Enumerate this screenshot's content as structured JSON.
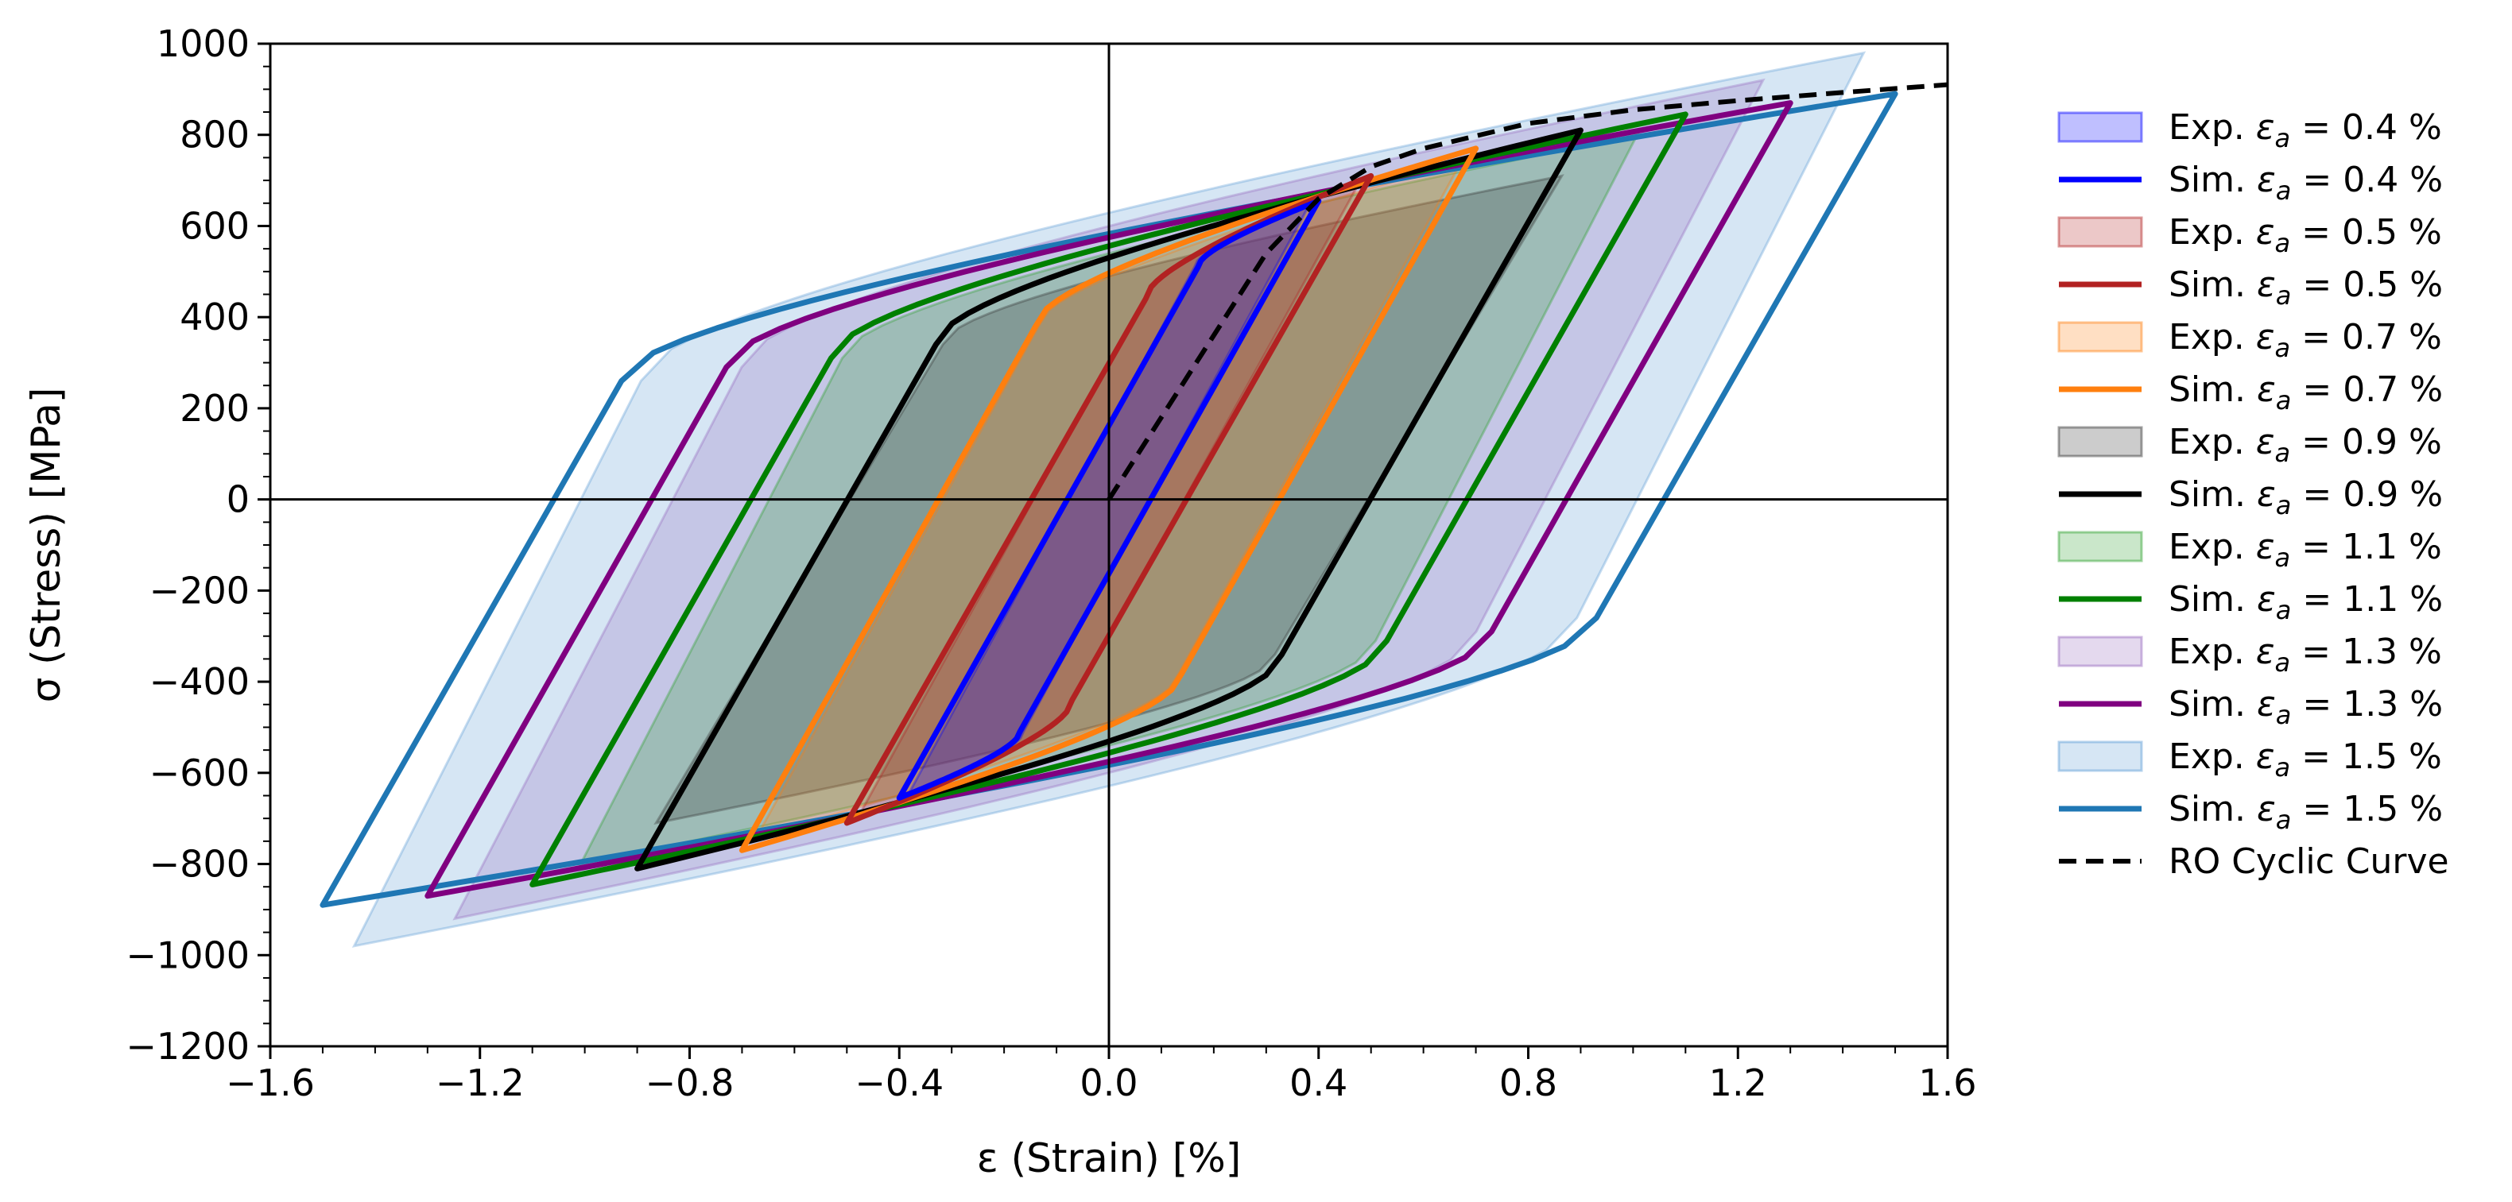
{
  "chart_data": {
    "type": "line",
    "title": "",
    "xlabel": "ε (Strain) [%]",
    "ylabel": "σ (Stress) [MPa]",
    "xlim": [
      -1.6,
      1.6
    ],
    "ylim": [
      -1200,
      1000
    ],
    "x_ticks": [
      -1.6,
      -1.2,
      -0.8,
      -0.4,
      0.0,
      0.4,
      0.8,
      1.2,
      1.6
    ],
    "x_tick_labels": [
      "−1.6",
      "−1.2",
      "−0.8",
      "−0.4",
      "0.0",
      "0.4",
      "0.8",
      "1.2",
      "1.6"
    ],
    "y_ticks": [
      1000,
      800,
      600,
      400,
      200,
      0,
      -200,
      -400,
      -600,
      -800,
      -1000,
      -1200
    ],
    "y_tick_labels": [
      "1000",
      "800",
      "600",
      "400",
      "200",
      "0",
      "−200",
      "−400",
      "−600",
      "−800",
      "−1000",
      "−1200"
    ],
    "grid": false,
    "legend_position": "outside-right",
    "series": [
      {
        "name": "Exp.",
        "amp_label": "0.4 %",
        "kind": "exp",
        "color": "#0000ff",
        "amplitude": 0.4,
        "pt_strain": 0.4,
        "pt_stress": 650,
        "yield_strain": 0.17,
        "yield_stress": 510
      },
      {
        "name": "Sim.",
        "amp_label": "0.4 %",
        "kind": "sim",
        "color": "#0000ff",
        "amplitude": 0.4,
        "pt_strain": 0.4,
        "pt_stress": 655,
        "yield_strain": 0.17,
        "yield_stress": 510
      },
      {
        "name": "Exp.",
        "amp_label": "0.5 %",
        "kind": "exp",
        "color": "#b22222",
        "amplitude": 0.5,
        "pt_strain": 0.5,
        "pt_stress": 700,
        "yield_strain": 0.07,
        "yield_stress": 440
      },
      {
        "name": "Sim.",
        "amp_label": "0.5 %",
        "kind": "sim",
        "color": "#b22222",
        "amplitude": 0.5,
        "pt_strain": 0.5,
        "pt_stress": 710,
        "yield_strain": 0.07,
        "yield_stress": 440
      },
      {
        "name": "Exp.",
        "amp_label": "0.7 %",
        "kind": "exp",
        "color": "#ff7f0e",
        "amplitude": 0.7,
        "pt_strain": 0.7,
        "pt_stress": 740,
        "yield_strain": -0.14,
        "yield_stress": 380
      },
      {
        "name": "Sim.",
        "amp_label": "0.7 %",
        "kind": "sim",
        "color": "#ff7f0e",
        "amplitude": 0.7,
        "pt_strain": 0.7,
        "pt_stress": 770,
        "yield_strain": -0.14,
        "yield_stress": 380
      },
      {
        "name": "Exp.",
        "amp_label": "0.9 %",
        "kind": "exp",
        "color": "#333333",
        "amplitude": 0.9,
        "pt_strain": 0.9,
        "pt_stress": 710,
        "yield_strain": -0.33,
        "yield_stress": 340
      },
      {
        "name": "Sim.",
        "amp_label": "0.9 %",
        "kind": "sim",
        "color": "#000000",
        "amplitude": 0.9,
        "pt_strain": 0.9,
        "pt_stress": 810,
        "yield_strain": -0.33,
        "yield_stress": 340
      },
      {
        "name": "Exp.",
        "amp_label": "1.1 %",
        "kind": "exp",
        "color": "#2ca02c",
        "amplitude": 1.1,
        "pt_strain": 1.05,
        "pt_stress": 800,
        "yield_strain": -0.53,
        "yield_stress": 310
      },
      {
        "name": "Sim.",
        "amp_label": "1.1 %",
        "kind": "sim",
        "color": "#008000",
        "amplitude": 1.1,
        "pt_strain": 1.1,
        "pt_stress": 845,
        "yield_strain": -0.53,
        "yield_stress": 310
      },
      {
        "name": "Exp.",
        "amp_label": "1.3 %",
        "kind": "exp",
        "color": "#9467bd",
        "amplitude": 1.3,
        "pt_strain": 1.3,
        "pt_stress": 920,
        "yield_strain": -0.73,
        "yield_stress": 290
      },
      {
        "name": "Sim.",
        "amp_label": "1.3 %",
        "kind": "sim",
        "color": "#800080",
        "amplitude": 1.3,
        "pt_strain": 1.3,
        "pt_stress": 870,
        "yield_strain": -0.73,
        "yield_stress": 290
      },
      {
        "name": "Exp.",
        "amp_label": "1.5 %",
        "kind": "exp",
        "color": "#5b9bd5",
        "amplitude": 1.5,
        "pt_strain": 1.5,
        "pt_stress": 980,
        "yield_strain": -0.93,
        "yield_stress": 260
      },
      {
        "name": "Sim.",
        "amp_label": "1.5 %",
        "kind": "sim",
        "color": "#1f77b4",
        "amplitude": 1.5,
        "pt_strain": 1.5,
        "pt_stress": 890,
        "yield_strain": -0.93,
        "yield_stress": 260
      }
    ],
    "cyclic_curve": {
      "name": "RO Cyclic Curve",
      "color": "#000000",
      "x": [
        0.0,
        0.1,
        0.2,
        0.3,
        0.4,
        0.5,
        0.6,
        0.8,
        1.0,
        1.2,
        1.4,
        1.6
      ],
      "y": [
        0,
        180,
        360,
        540,
        660,
        730,
        770,
        825,
        855,
        875,
        893,
        910
      ]
    },
    "legend_symbol": "ε",
    "legend_subscript": "a"
  }
}
